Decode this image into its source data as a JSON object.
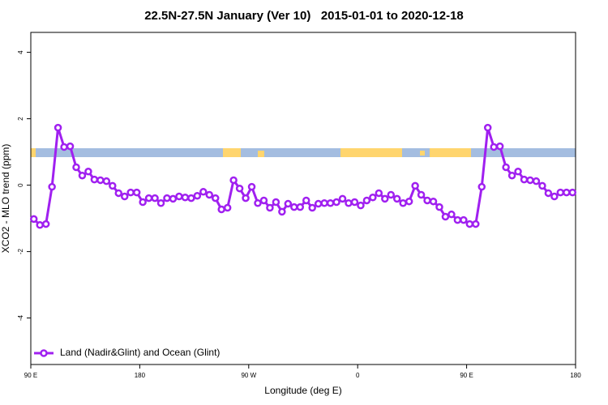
{
  "chart_data": {
    "type": "line",
    "title": "22.5N-27.5N January (Ver 10)   2015-01-01 to 2020-12-18",
    "x_label": "Longitude (deg E)",
    "y_label": "XCO2 - MLO trend (ppm)",
    "xlim": [
      90,
      540
    ],
    "ylim": [
      -5.4,
      4.6
    ],
    "xticks": [
      {
        "value": 90,
        "label": "90 E"
      },
      180,
      {
        "value": 270,
        "label": "90 W"
      },
      {
        "value": 360,
        "label": "0"
      },
      {
        "value": 450,
        "label": "90 E"
      },
      {
        "value": 540,
        "label": "180"
      }
    ],
    "yticks": [
      -4,
      -2,
      0,
      2,
      4
    ],
    "legend": "bottom-left",
    "x": [
      92.5,
      97.5,
      102.5,
      107.5,
      112.5,
      117.5,
      122.5,
      127.5,
      132.5,
      137.5,
      142.5,
      147.5,
      152.5,
      157.5,
      162.5,
      167.5,
      172.5,
      177.5,
      182.5,
      187.5,
      192.5,
      197.5,
      202.5,
      207.5,
      212.5,
      217.5,
      222.5,
      227.5,
      232.5,
      237.5,
      242.5,
      247.5,
      252.5,
      257.5,
      262.5,
      267.5,
      272.5,
      277.5,
      282.5,
      287.5,
      292.5,
      297.5,
      302.5,
      307.5,
      312.5,
      317.5,
      322.5,
      327.5,
      332.5,
      337.5,
      342.5,
      347.5,
      352.5,
      357.5,
      362.5,
      367.5,
      372.5,
      377.5,
      382.5,
      387.5,
      392.5,
      397.5,
      402.5,
      407.5,
      412.5,
      417.5,
      422.5,
      427.5,
      432.5,
      437.5,
      442.5,
      447.5,
      452.5,
      457.5,
      462.5,
      467.5,
      472.5,
      477.5,
      482.5,
      487.5,
      492.5,
      497.5,
      502.5,
      507.5,
      512.5,
      517.5,
      522.5,
      527.5,
      532.5,
      537.5
    ],
    "series": [
      {
        "name": "Land (Nadir&Glint) and Ocean (Glint)",
        "color": "#a020f0",
        "values": [
          -1.02,
          -1.2,
          -1.17,
          -0.05,
          1.73,
          1.15,
          1.17,
          0.54,
          0.29,
          0.41,
          0.17,
          0.15,
          0.12,
          -0.02,
          -0.24,
          -0.34,
          -0.22,
          -0.22,
          -0.51,
          -0.39,
          -0.39,
          -0.54,
          -0.39,
          -0.41,
          -0.34,
          -0.37,
          -0.39,
          -0.32,
          -0.2,
          -0.29,
          -0.39,
          -0.73,
          -0.68,
          0.15,
          -0.1,
          -0.39,
          -0.05,
          -0.54,
          -0.46,
          -0.68,
          -0.51,
          -0.8,
          -0.56,
          -0.66,
          -0.66,
          -0.46,
          -0.68,
          -0.56,
          -0.54,
          -0.54,
          -0.51,
          -0.41,
          -0.54,
          -0.51,
          -0.61,
          -0.46,
          -0.37,
          -0.24,
          -0.41,
          -0.29,
          -0.41,
          -0.54,
          -0.49,
          -0.02,
          -0.29,
          -0.46,
          -0.49,
          -0.66,
          -0.95,
          -0.88,
          -1.05,
          -1.05,
          -1.17,
          -1.17,
          -0.05,
          1.73,
          1.15,
          1.17,
          0.54,
          0.29,
          0.41,
          0.17,
          0.15,
          0.12,
          -0.02,
          -0.24,
          -0.34,
          -0.22,
          -0.22,
          -0.22
        ]
      }
    ]
  }
}
